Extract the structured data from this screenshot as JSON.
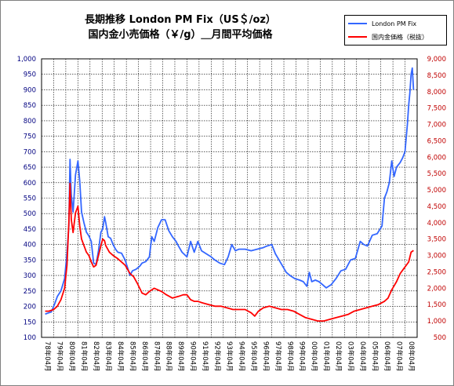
{
  "chart_data": {
    "type": "line",
    "title": "長期推移 London PM Fix（US＄/oz）",
    "subtitle": "国内金小売価格（￥/g）＿月間平均価格",
    "y_left": {
      "min": 100,
      "max": 1000,
      "step": 50,
      "color": "#000080",
      "ticks": [
        "100",
        "150",
        "200",
        "250",
        "300",
        "350",
        "400",
        "450",
        "500",
        "550",
        "600",
        "650",
        "700",
        "750",
        "800",
        "850",
        "900",
        "950",
        "1,000"
      ]
    },
    "y_right": {
      "min": 500,
      "max": 9000,
      "step": 500,
      "color": "#c00000",
      "ticks": [
        "500",
        "1,000",
        "1,500",
        "2,000",
        "2,500",
        "3,000",
        "3,500",
        "4,000",
        "4,500",
        "5,000",
        "5,500",
        "6,000",
        "6,500",
        "7,000",
        "7,500",
        "8,000",
        "8,500",
        "9,000"
      ]
    },
    "x_ticks": [
      "78年04月",
      "79年04月",
      "80年04月",
      "81年04月",
      "82年04月",
      "83年04月",
      "84年04月",
      "85年04月",
      "86年04月",
      "87年04月",
      "88年04月",
      "89年04月",
      "90年04月",
      "91年04月",
      "92年04月",
      "93年04月",
      "94年04月",
      "95年04月",
      "96年04月",
      "97年04月",
      "98年04月",
      "99年04月",
      "00年04月",
      "01年04月",
      "02年04月",
      "03年04月",
      "04年04月",
      "05年04月",
      "06年04月",
      "07年04月",
      "08年04月"
    ],
    "grid": true,
    "legend_position": "top-right",
    "series": [
      {
        "name": "London PM Fix",
        "color": "#3366ff",
        "axis": "left",
        "x": [
          1978.0,
          1978.2,
          1978.5,
          1978.8,
          1979.0,
          1979.3,
          1979.6,
          1979.8,
          1979.95,
          1980.05,
          1980.15,
          1980.3,
          1980.5,
          1980.7,
          1980.85,
          1981.0,
          1981.2,
          1981.4,
          1981.6,
          1981.8,
          1982.0,
          1982.2,
          1982.4,
          1982.6,
          1982.75,
          1982.9,
          1983.0,
          1983.2,
          1983.4,
          1983.6,
          1983.8,
          1984.0,
          1984.3,
          1984.6,
          1985.0,
          1985.2,
          1985.5,
          1985.8,
          1986.0,
          1986.3,
          1986.6,
          1986.8,
          1987.0,
          1987.3,
          1987.6,
          1987.9,
          1988.2,
          1988.5,
          1988.8,
          1989.0,
          1989.3,
          1989.7,
          1990.0,
          1990.3,
          1990.6,
          1990.9,
          1991.3,
          1991.7,
          1992.0,
          1992.4,
          1992.8,
          1993.1,
          1993.4,
          1993.7,
          1994.0,
          1994.5,
          1995.0,
          1995.5,
          1996.0,
          1996.3,
          1996.7,
          1997.0,
          1997.3,
          1997.6,
          1997.9,
          1998.2,
          1998.6,
          1999.0,
          1999.3,
          1999.6,
          1999.8,
          2000.0,
          2000.3,
          2000.6,
          2000.9,
          2001.2,
          2001.6,
          2002.0,
          2002.4,
          2002.8,
          2003.2,
          2003.6,
          2004.0,
          2004.3,
          2004.6,
          2005.0,
          2005.4,
          2005.8,
          2006.0,
          2006.2,
          2006.4,
          2006.6,
          2006.8,
          2007.0,
          2007.3,
          2007.5,
          2007.7,
          2007.9,
          2008.0,
          2008.1,
          2008.2,
          2008.3,
          2008.4
        ],
        "values": [
          175,
          178,
          182,
          210,
          232,
          250,
          290,
          372,
          460,
          675,
          560,
          505,
          625,
          670,
          605,
          505,
          470,
          440,
          428,
          410,
          340,
          335,
          380,
          440,
          450,
          490,
          470,
          425,
          420,
          400,
          385,
          375,
          372,
          350,
          300,
          315,
          320,
          330,
          340,
          345,
          360,
          425,
          410,
          455,
          480,
          480,
          445,
          425,
          410,
          395,
          375,
          360,
          410,
          375,
          410,
          380,
          370,
          360,
          350,
          340,
          335,
          360,
          400,
          380,
          385,
          385,
          380,
          385,
          390,
          395,
          400,
          370,
          350,
          330,
          310,
          300,
          290,
          285,
          280,
          265,
          310,
          280,
          285,
          280,
          270,
          260,
          270,
          290,
          315,
          320,
          350,
          355,
          410,
          400,
          395,
          430,
          435,
          460,
          550,
          570,
          600,
          670,
          620,
          650,
          665,
          680,
          700,
          790,
          850,
          890,
          950,
          970,
          900
        ]
      },
      {
        "name": "国内金価格（税抜）",
        "color": "#ff0000",
        "axis": "right",
        "x": [
          1978.0,
          1978.3,
          1978.7,
          1979.0,
          1979.3,
          1979.6,
          1979.8,
          1979.95,
          1980.05,
          1980.15,
          1980.3,
          1980.5,
          1980.7,
          1980.85,
          1981.0,
          1981.2,
          1981.4,
          1981.6,
          1981.8,
          1982.0,
          1982.2,
          1982.4,
          1982.6,
          1982.75,
          1982.9,
          1983.0,
          1983.3,
          1983.6,
          1984.0,
          1984.3,
          1984.6,
          1985.0,
          1985.3,
          1985.6,
          1986.0,
          1986.3,
          1986.6,
          1987.0,
          1987.3,
          1987.6,
          1988.0,
          1988.5,
          1989.0,
          1989.4,
          1989.7,
          1990.0,
          1990.3,
          1990.6,
          1991.0,
          1991.5,
          1992.0,
          1992.5,
          1993.0,
          1993.5,
          1994.0,
          1994.5,
          1995.0,
          1995.3,
          1995.6,
          1996.0,
          1996.5,
          1997.0,
          1997.5,
          1998.0,
          1998.5,
          1999.0,
          1999.5,
          2000.0,
          2000.5,
          2001.0,
          2001.5,
          2002.0,
          2002.5,
          2003.0,
          2003.5,
          2004.0,
          2004.5,
          2005.0,
          2005.5,
          2006.0,
          2006.3,
          2006.6,
          2007.0,
          2007.3,
          2007.6,
          2008.0,
          2008.2,
          2008.4
        ],
        "values": [
          1300,
          1300,
          1350,
          1450,
          1650,
          2000,
          2700,
          4000,
          5200,
          4100,
          3700,
          4300,
          4500,
          3900,
          3500,
          3300,
          3100,
          3000,
          2800,
          2650,
          2700,
          3000,
          3300,
          3500,
          3450,
          3300,
          3100,
          3000,
          2900,
          2800,
          2700,
          2450,
          2350,
          2150,
          1850,
          1800,
          1900,
          2000,
          1950,
          1900,
          1800,
          1700,
          1750,
          1800,
          1800,
          1650,
          1600,
          1600,
          1550,
          1500,
          1450,
          1450,
          1400,
          1350,
          1350,
          1350,
          1250,
          1150,
          1300,
          1400,
          1450,
          1400,
          1350,
          1350,
          1300,
          1200,
          1100,
          1050,
          1000,
          1000,
          1050,
          1100,
          1150,
          1200,
          1300,
          1350,
          1400,
          1450,
          1500,
          1600,
          1700,
          1950,
          2200,
          2450,
          2600,
          2800,
          3100,
          3150
        ]
      }
    ]
  }
}
